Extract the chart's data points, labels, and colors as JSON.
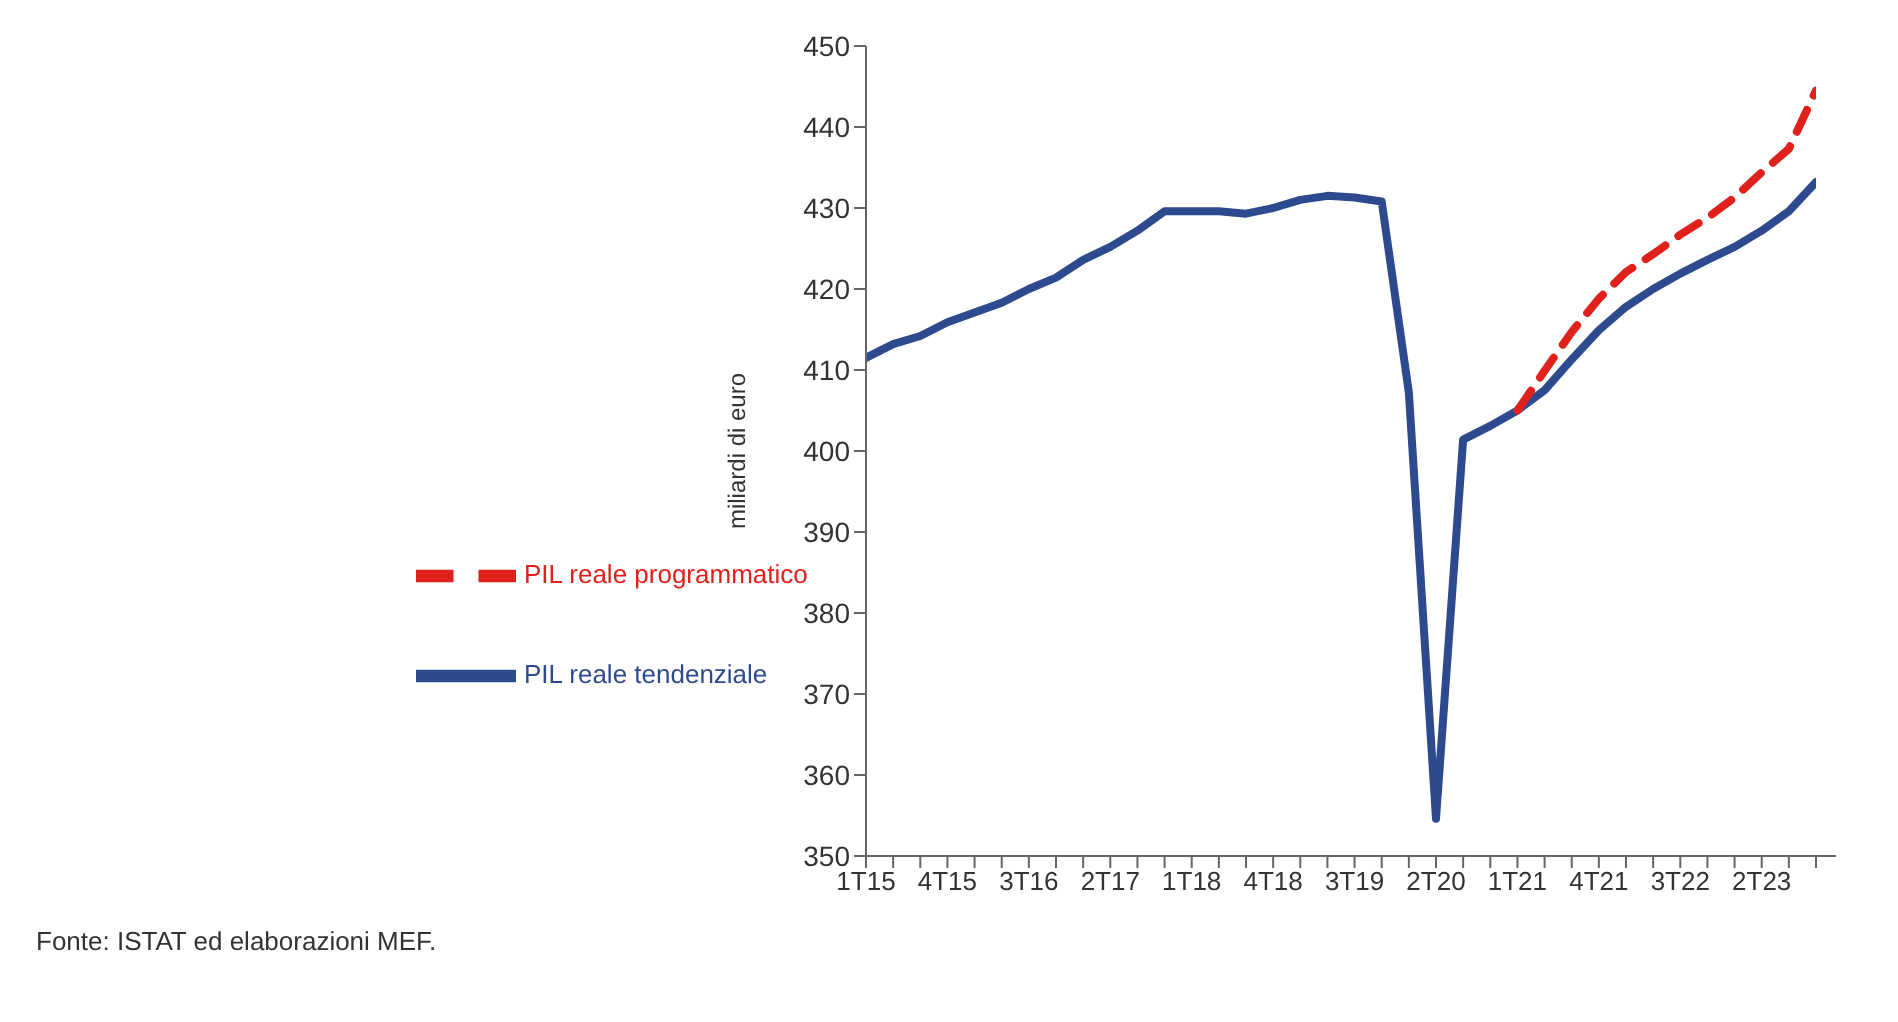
{
  "chart_data": {
    "type": "line",
    "ylabel": "miliardi di euro",
    "annotations": [
      "Fonte: ISTAT ed elaborazioni MEF."
    ],
    "categories": [
      "1T15",
      null,
      null,
      "4T15",
      null,
      null,
      "3T16",
      null,
      null,
      "2T17",
      null,
      null,
      "1T18",
      null,
      null,
      "4T18",
      null,
      null,
      "3T19",
      null,
      null,
      "2T20",
      null,
      null,
      "1T21",
      null,
      null,
      "4T21",
      null,
      null,
      "3T22",
      null,
      null,
      "2T23",
      null,
      null
    ],
    "series": [
      {
        "name": "PIL reale tendenziale",
        "color": "#2e4a8e",
        "line_style": "solid",
        "values": [
          411.5,
          413.2,
          414.2,
          415.9,
          417.1,
          418.3,
          420,
          421.4,
          423.6,
          425.2,
          427.2,
          429.6,
          429.6,
          429.6,
          429.3,
          430,
          431,
          431.5,
          431.3,
          430.8,
          407.2,
          354.6,
          401.4,
          403.1,
          405,
          407.5,
          411.3,
          414.9,
          417.8,
          420,
          421.9,
          423.6,
          425.2,
          427.2,
          429.6,
          433.2
        ]
      },
      {
        "name": "PIL reale programmatico",
        "color": "#e0201b",
        "line_style": "dashed",
        "values": [
          null,
          null,
          null,
          null,
          null,
          null,
          null,
          null,
          null,
          null,
          null,
          null,
          null,
          null,
          null,
          null,
          null,
          null,
          null,
          null,
          null,
          null,
          null,
          null,
          405,
          409.9,
          414.7,
          418.8,
          422.1,
          424.3,
          426.7,
          428.8,
          431.3,
          434.4,
          437.3,
          444.5
        ]
      }
    ],
    "ylim": [
      350,
      450
    ],
    "yticks": [
      350,
      360,
      370,
      380,
      390,
      400,
      410,
      420,
      430,
      440,
      450
    ],
    "grid": false,
    "legend": "left",
    "marker": "none"
  }
}
